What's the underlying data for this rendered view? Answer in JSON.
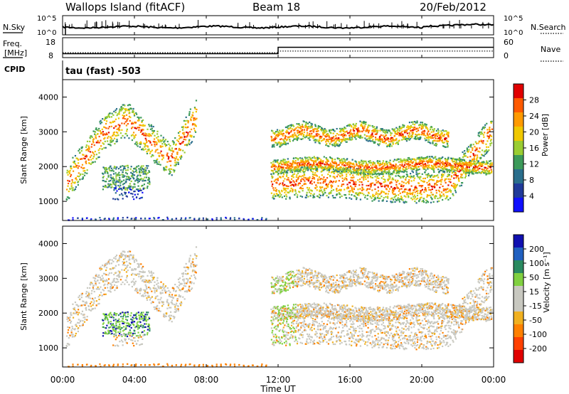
{
  "header": {
    "station": "Wallops Island (fitACF)",
    "beam": "Beam 18",
    "date": "20/Feb/2012"
  },
  "top_panels": {
    "nsky_label": "N.Sky",
    "nsearch_label": "N.Search",
    "noise_ticks_left": [
      "10^5",
      "10^0"
    ],
    "noise_ticks_right": [
      "10^5",
      "10^0"
    ],
    "freq_label": "Freq.",
    "freq_unit": "[MHz]",
    "freq_ticks": [
      "18",
      "8"
    ],
    "nave_label": "Nave",
    "nave_ticks": [
      "60",
      "0"
    ],
    "cpid_label": "CPID",
    "cpid_value": "tau (fast) -503",
    "freq_series": [
      [
        0,
        10.4
      ],
      [
        12,
        10.4
      ],
      [
        12,
        14.3
      ],
      [
        24,
        14.3
      ]
    ],
    "nave_series": [
      [
        0,
        18
      ],
      [
        12,
        18
      ],
      [
        12,
        24
      ],
      [
        24,
        24
      ]
    ]
  },
  "chart_data": [
    {
      "type": "heatmap",
      "title": "Power",
      "ylabel": "Slant Range [km]",
      "xlabel": "Time UT",
      "x_ticks": [
        "00:00",
        "04:00",
        "08:00",
        "12:00",
        "16:00",
        "20:00",
        "00:00"
      ],
      "xlim_hours": [
        0,
        24
      ],
      "ylim": [
        450,
        4500
      ],
      "y_ticks": [
        1000,
        2000,
        3000,
        4000
      ],
      "colorbar_label": "Power [dB]",
      "colorbar_ticks": [
        "28",
        "24",
        "20",
        "16",
        "12",
        "8",
        "4"
      ],
      "colorbar_colors": [
        "#e00000",
        "#ff5a00",
        "#ff9a00",
        "#f0c800",
        "#9acd32",
        "#3c9a5a",
        "#2a6e8c",
        "#203a9a",
        "#1010ff"
      ]
    },
    {
      "type": "heatmap",
      "title": "Velocity",
      "ylabel": "Slant Range [km]",
      "xlabel": "Time UT",
      "x_ticks": [
        "00:00",
        "04:00",
        "08:00",
        "12:00",
        "16:00",
        "20:00",
        "00:00"
      ],
      "xlim_hours": [
        0,
        24
      ],
      "ylim": [
        450,
        4500
      ],
      "y_ticks": [
        1000,
        2000,
        3000,
        4000
      ],
      "colorbar_label": "Velocity [m s⁻¹]",
      "colorbar_ticks": [
        "200",
        "100",
        "50",
        "15",
        "-15",
        "-50",
        "-100",
        "-200"
      ],
      "colorbar_colors": [
        "#1010b0",
        "#2060c0",
        "#2a8a60",
        "#80d040",
        "#c8c8c0",
        "#c8c8c0",
        "#f0b020",
        "#ff8000",
        "#ff4000",
        "#e00000"
      ]
    }
  ]
}
